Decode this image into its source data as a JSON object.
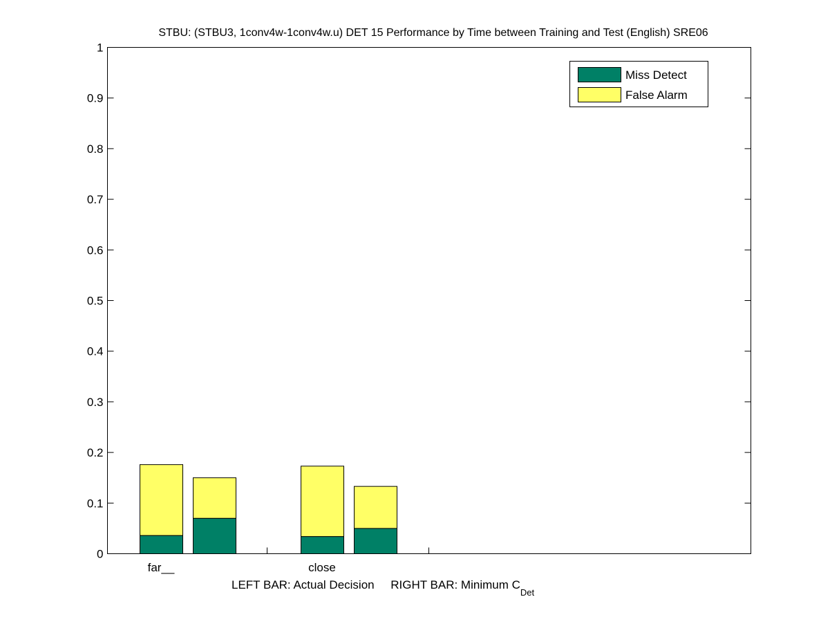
{
  "chart_data": {
    "type": "bar",
    "stacked": true,
    "title": "STBU: (STBU3, 1conv4w-1conv4w.u) DET 15 Performance by Time between Training and Test (English) SRE06",
    "xlabel": "LEFT BAR: Actual Decision     RIGHT BAR: Minimum C",
    "xlabel_subscript": "Det",
    "categories": [
      "far__",
      "close"
    ],
    "bars_per_category": [
      "Actual Decision",
      "Minimum C_Det"
    ],
    "series": [
      {
        "name": "Miss Detect",
        "color": "#008066",
        "values": [
          [
            0.036,
            0.07
          ],
          [
            0.034,
            0.05
          ]
        ]
      },
      {
        "name": "False Alarm",
        "color": "#ffff66",
        "values": [
          [
            0.14,
            0.08
          ],
          [
            0.139,
            0.083
          ]
        ]
      }
    ],
    "ylim": [
      0,
      1
    ],
    "yticks": [
      "0",
      "0.1",
      "0.2",
      "0.3",
      "0.4",
      "0.5",
      "0.6",
      "0.7",
      "0.8",
      "0.9",
      "1"
    ],
    "grid": false,
    "legend_position": "top-right"
  }
}
